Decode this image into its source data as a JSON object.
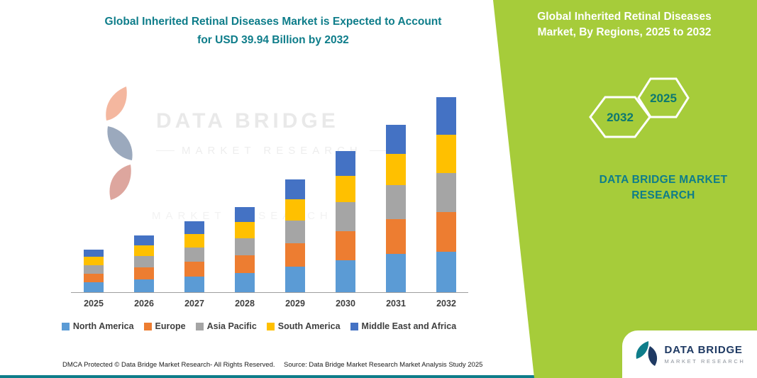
{
  "theme": {
    "teal": "#0E7D8A",
    "green": "#A6CC3A",
    "navy": "#1F3A63",
    "axis_text_color": "#3F3F3F"
  },
  "header": {
    "title": "Global Inherited Retinal Diseases Market is Expected to Account for USD 39.94 Billion by 2032"
  },
  "watermark": {
    "brand": "DATA BRIDGE",
    "sub": "MARKET RESEARCH"
  },
  "side_panel": {
    "title": "Global Inherited Retinal Diseases Market, By Regions, 2025 to 2032",
    "hex_left_year": "2032",
    "hex_right_year": "2025",
    "brand_text": "DATA BRIDGE MARKET RESEARCH"
  },
  "logo_badge": {
    "brand": "DATA BRIDGE",
    "sub": "MARKET RESEARCH"
  },
  "footer": {
    "dmca": "DMCA Protected © Data Bridge Market Research-  All Rights Reserved.",
    "source": "Source: Data Bridge Market Research  Market Analysis Study 2025"
  },
  "chart_data": {
    "type": "bar",
    "stacked": true,
    "title": "Global Inherited Retinal Diseases Market is Expected to Account for USD 39.94 Billion by 2032",
    "unit": "USD Billion",
    "categories": [
      "2025",
      "2026",
      "2027",
      "2028",
      "2029",
      "2030",
      "2031",
      "2032"
    ],
    "series": [
      {
        "name": "North America",
        "color": "#5B9BD5",
        "values": [
          2.0,
          2.6,
          3.2,
          3.9,
          5.2,
          6.5,
          7.8,
          8.3
        ]
      },
      {
        "name": "Europe",
        "color": "#ED7D31",
        "values": [
          1.8,
          2.4,
          3.0,
          3.6,
          4.8,
          6.0,
          7.1,
          8.1
        ]
      },
      {
        "name": "Asia Pacific",
        "color": "#A5A5A5",
        "values": [
          1.8,
          2.3,
          2.9,
          3.5,
          4.7,
          5.9,
          7.0,
          8.0
        ]
      },
      {
        "name": "South America",
        "color": "#FFC000",
        "values": [
          1.7,
          2.2,
          2.7,
          3.3,
          4.4,
          5.4,
          6.4,
          7.8
        ]
      },
      {
        "name": "Middle East and Africa",
        "color": "#4472C4",
        "values": [
          1.5,
          2.0,
          2.6,
          3.0,
          4.0,
          5.0,
          6.0,
          7.74
        ]
      }
    ],
    "totals": [
      8.8,
      11.5,
      14.4,
      17.3,
      23.1,
      28.8,
      34.3,
      39.94
    ],
    "ylim": [
      0,
      42
    ],
    "grid": false,
    "y_axis_visible": false,
    "legend_position": "bottom"
  }
}
